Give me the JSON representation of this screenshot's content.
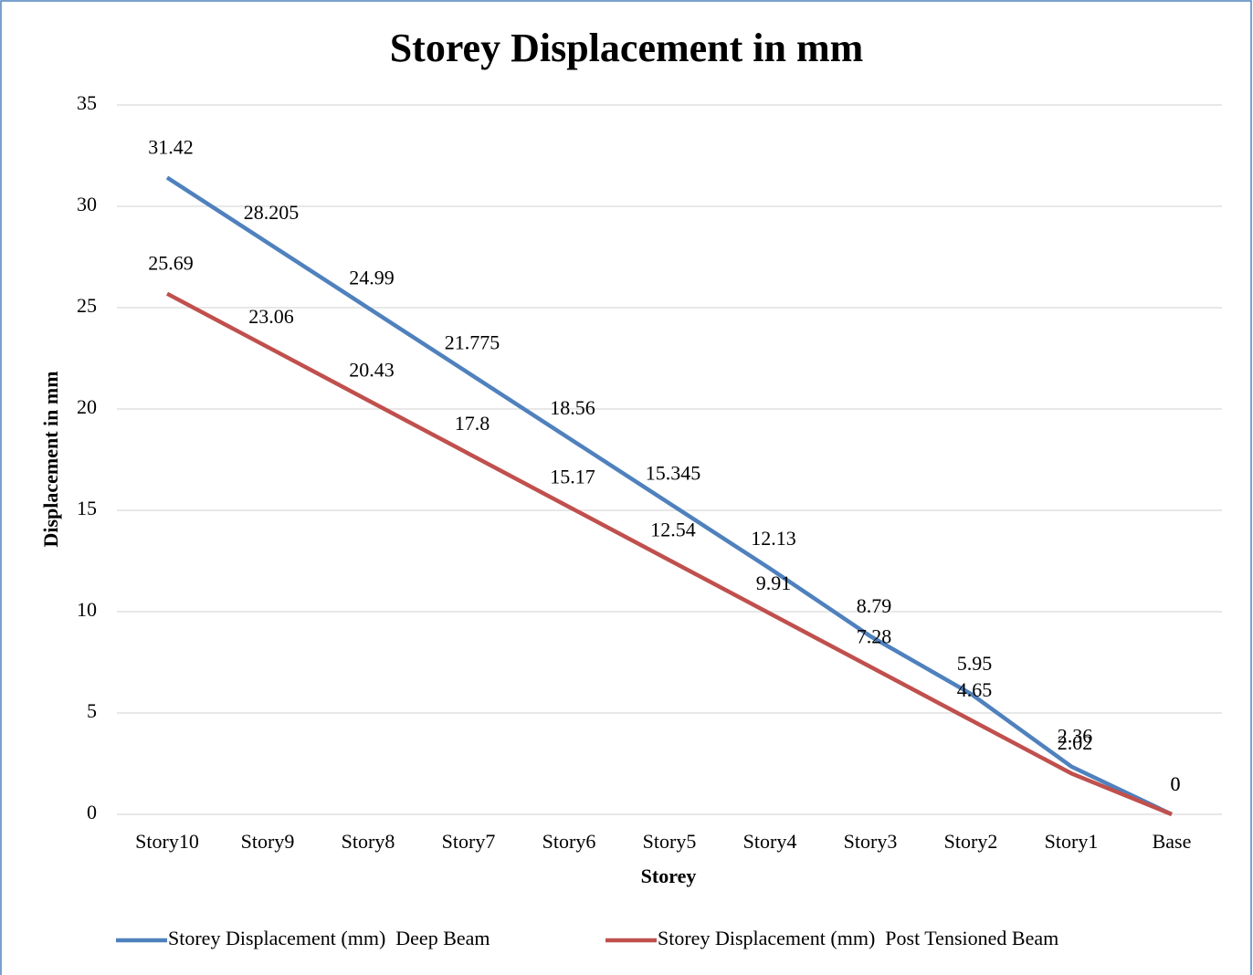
{
  "chart_data": {
    "type": "line",
    "title": "Storey Displacement in mm",
    "x_label": "Storey",
    "y_label": "Displacement in mm",
    "categories": [
      "Story10",
      "Story9",
      "Story8",
      "Story7",
      "Story6",
      "Story5",
      "Story4",
      "Story3",
      "Story2",
      "Story1",
      "Base"
    ],
    "series": [
      {
        "name": "Storey Displacement (mm)  Deep Beam",
        "color": "#4f81bd",
        "values": [
          31.42,
          28.205,
          24.99,
          21.775,
          18.56,
          15.345,
          12.13,
          8.79,
          5.95,
          2.36,
          0
        ]
      },
      {
        "name": "Storey Displacement (mm)  Post Tensioned Beam",
        "color": "#c0504d",
        "values": [
          25.69,
          23.06,
          20.43,
          17.8,
          15.17,
          12.54,
          9.91,
          7.28,
          4.65,
          2.02,
          0
        ]
      }
    ],
    "ylim": [
      0,
      35
    ],
    "yticks": [
      0,
      5,
      10,
      15,
      20,
      25,
      30,
      35
    ],
    "grid": true,
    "legend": "bottom"
  }
}
